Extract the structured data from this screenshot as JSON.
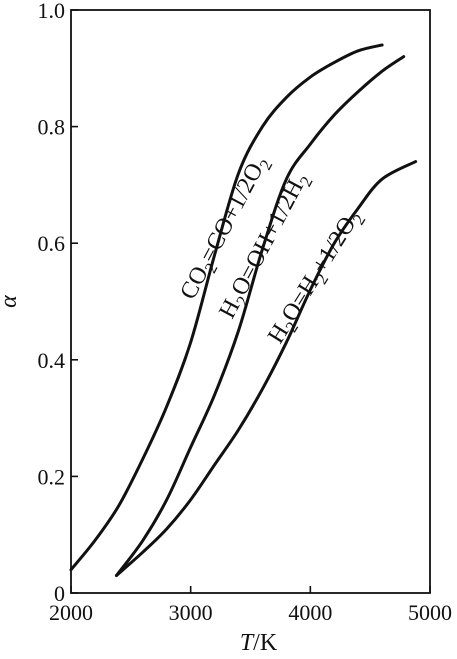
{
  "chart_data": {
    "type": "line",
    "xlabel": "T/K",
    "ylabel": "α",
    "xlim": [
      2000,
      5000
    ],
    "ylim": [
      0,
      1.0
    ],
    "x_ticks": [
      2000,
      3000,
      4000,
      5000
    ],
    "x_tick_labels": [
      "2000",
      "3000",
      "4000",
      "5000"
    ],
    "y_ticks": [
      0,
      0.2,
      0.4,
      0.6,
      0.8,
      1.0
    ],
    "y_tick_labels": [
      "0",
      "0.2",
      "0.4",
      "0.6",
      "0.8",
      "1.0"
    ],
    "grid": false,
    "line_color": "#111111",
    "series": [
      {
        "name": "CO2=CO+1/2O2",
        "points": [
          [
            2000,
            0.04
          ],
          [
            2200,
            0.09
          ],
          [
            2400,
            0.15
          ],
          [
            2600,
            0.23
          ],
          [
            2800,
            0.32
          ],
          [
            3000,
            0.43
          ],
          [
            3200,
            0.58
          ],
          [
            3400,
            0.72
          ],
          [
            3600,
            0.8
          ],
          [
            3800,
            0.85
          ],
          [
            4000,
            0.885
          ],
          [
            4200,
            0.91
          ],
          [
            4400,
            0.93
          ],
          [
            4600,
            0.94
          ]
        ]
      },
      {
        "name": "H2O=OH+1/2H2",
        "points": [
          [
            2380,
            0.03
          ],
          [
            2600,
            0.09
          ],
          [
            2800,
            0.16
          ],
          [
            3000,
            0.25
          ],
          [
            3200,
            0.34
          ],
          [
            3400,
            0.45
          ],
          [
            3600,
            0.59
          ],
          [
            3800,
            0.71
          ],
          [
            4000,
            0.77
          ],
          [
            4200,
            0.82
          ],
          [
            4400,
            0.86
          ],
          [
            4600,
            0.895
          ],
          [
            4780,
            0.92
          ]
        ]
      },
      {
        "name": "H2O=H2+1/2O2",
        "points": [
          [
            2380,
            0.03
          ],
          [
            2600,
            0.07
          ],
          [
            2800,
            0.11
          ],
          [
            3000,
            0.16
          ],
          [
            3200,
            0.22
          ],
          [
            3400,
            0.28
          ],
          [
            3600,
            0.35
          ],
          [
            3800,
            0.43
          ],
          [
            4000,
            0.52
          ],
          [
            4200,
            0.6
          ],
          [
            4400,
            0.66
          ],
          [
            4600,
            0.71
          ],
          [
            4880,
            0.74
          ]
        ]
      }
    ]
  }
}
